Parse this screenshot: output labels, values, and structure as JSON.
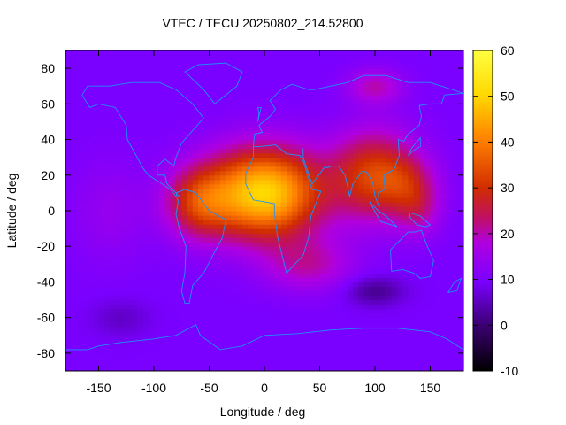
{
  "chart_data": {
    "type": "heatmap",
    "title": "VTEC / TECU 20250802_214.52800",
    "xlabel": "Longitude / deg",
    "ylabel": "Latitude / deg",
    "xlim": [
      -180,
      180
    ],
    "ylim": [
      -90,
      90
    ],
    "x_ticks": [
      -150,
      -100,
      -50,
      0,
      50,
      100,
      150
    ],
    "x_tick_labels": [
      "-150",
      "-100",
      "-50",
      "0",
      "50",
      "100",
      "150"
    ],
    "y_ticks": [
      80,
      60,
      40,
      20,
      0,
      -20,
      -40,
      -60,
      -80
    ],
    "y_tick_labels": [
      "80",
      "60",
      "40",
      "20",
      "0",
      "-20",
      "-40",
      "-60",
      "-80"
    ],
    "colorbar": {
      "range": [
        -10,
        60
      ],
      "ticks": [
        60,
        50,
        40,
        30,
        20,
        10,
        0,
        -10
      ],
      "tick_labels": [
        "60",
        "50",
        "40",
        "30",
        "20",
        "10",
        "0",
        "-10"
      ]
    },
    "grid": false,
    "background_level": 10,
    "features": [
      {
        "lon": 0,
        "lat": 10,
        "amp": 40,
        "slon": 50,
        "slat": 25,
        "description": "equatorial peak"
      },
      {
        "lon": -60,
        "lat": 5,
        "amp": 18,
        "slon": 30,
        "slat": 20
      },
      {
        "lon": 100,
        "lat": 20,
        "amp": 22,
        "slon": 40,
        "slat": 25
      },
      {
        "lon": 140,
        "lat": 0,
        "amp": 8,
        "slon": 20,
        "slat": 15
      },
      {
        "lon": 40,
        "lat": -30,
        "amp": 10,
        "slon": 40,
        "slat": 15
      },
      {
        "lon": 100,
        "lat": 70,
        "amp": 10,
        "slon": 25,
        "slat": 10
      },
      {
        "lon": 130,
        "lat": 15,
        "amp": 8,
        "slon": 25,
        "slat": 15
      },
      {
        "lon": -140,
        "lat": 0,
        "amp": 4,
        "slon": 35,
        "slat": 30
      },
      {
        "lon": 100,
        "lat": -45,
        "amp": -8,
        "slon": 25,
        "slat": 8
      },
      {
        "lon": -130,
        "lat": -60,
        "amp": -4,
        "slon": 25,
        "slat": 10
      }
    ],
    "colors": {
      "palette": [
        "#000000",
        "#3a0070",
        "#7a00ff",
        "#b000e0",
        "#d02c00",
        "#ff8000",
        "#ffd800",
        "#ffff40"
      ],
      "coast": "#1e90ff"
    }
  }
}
